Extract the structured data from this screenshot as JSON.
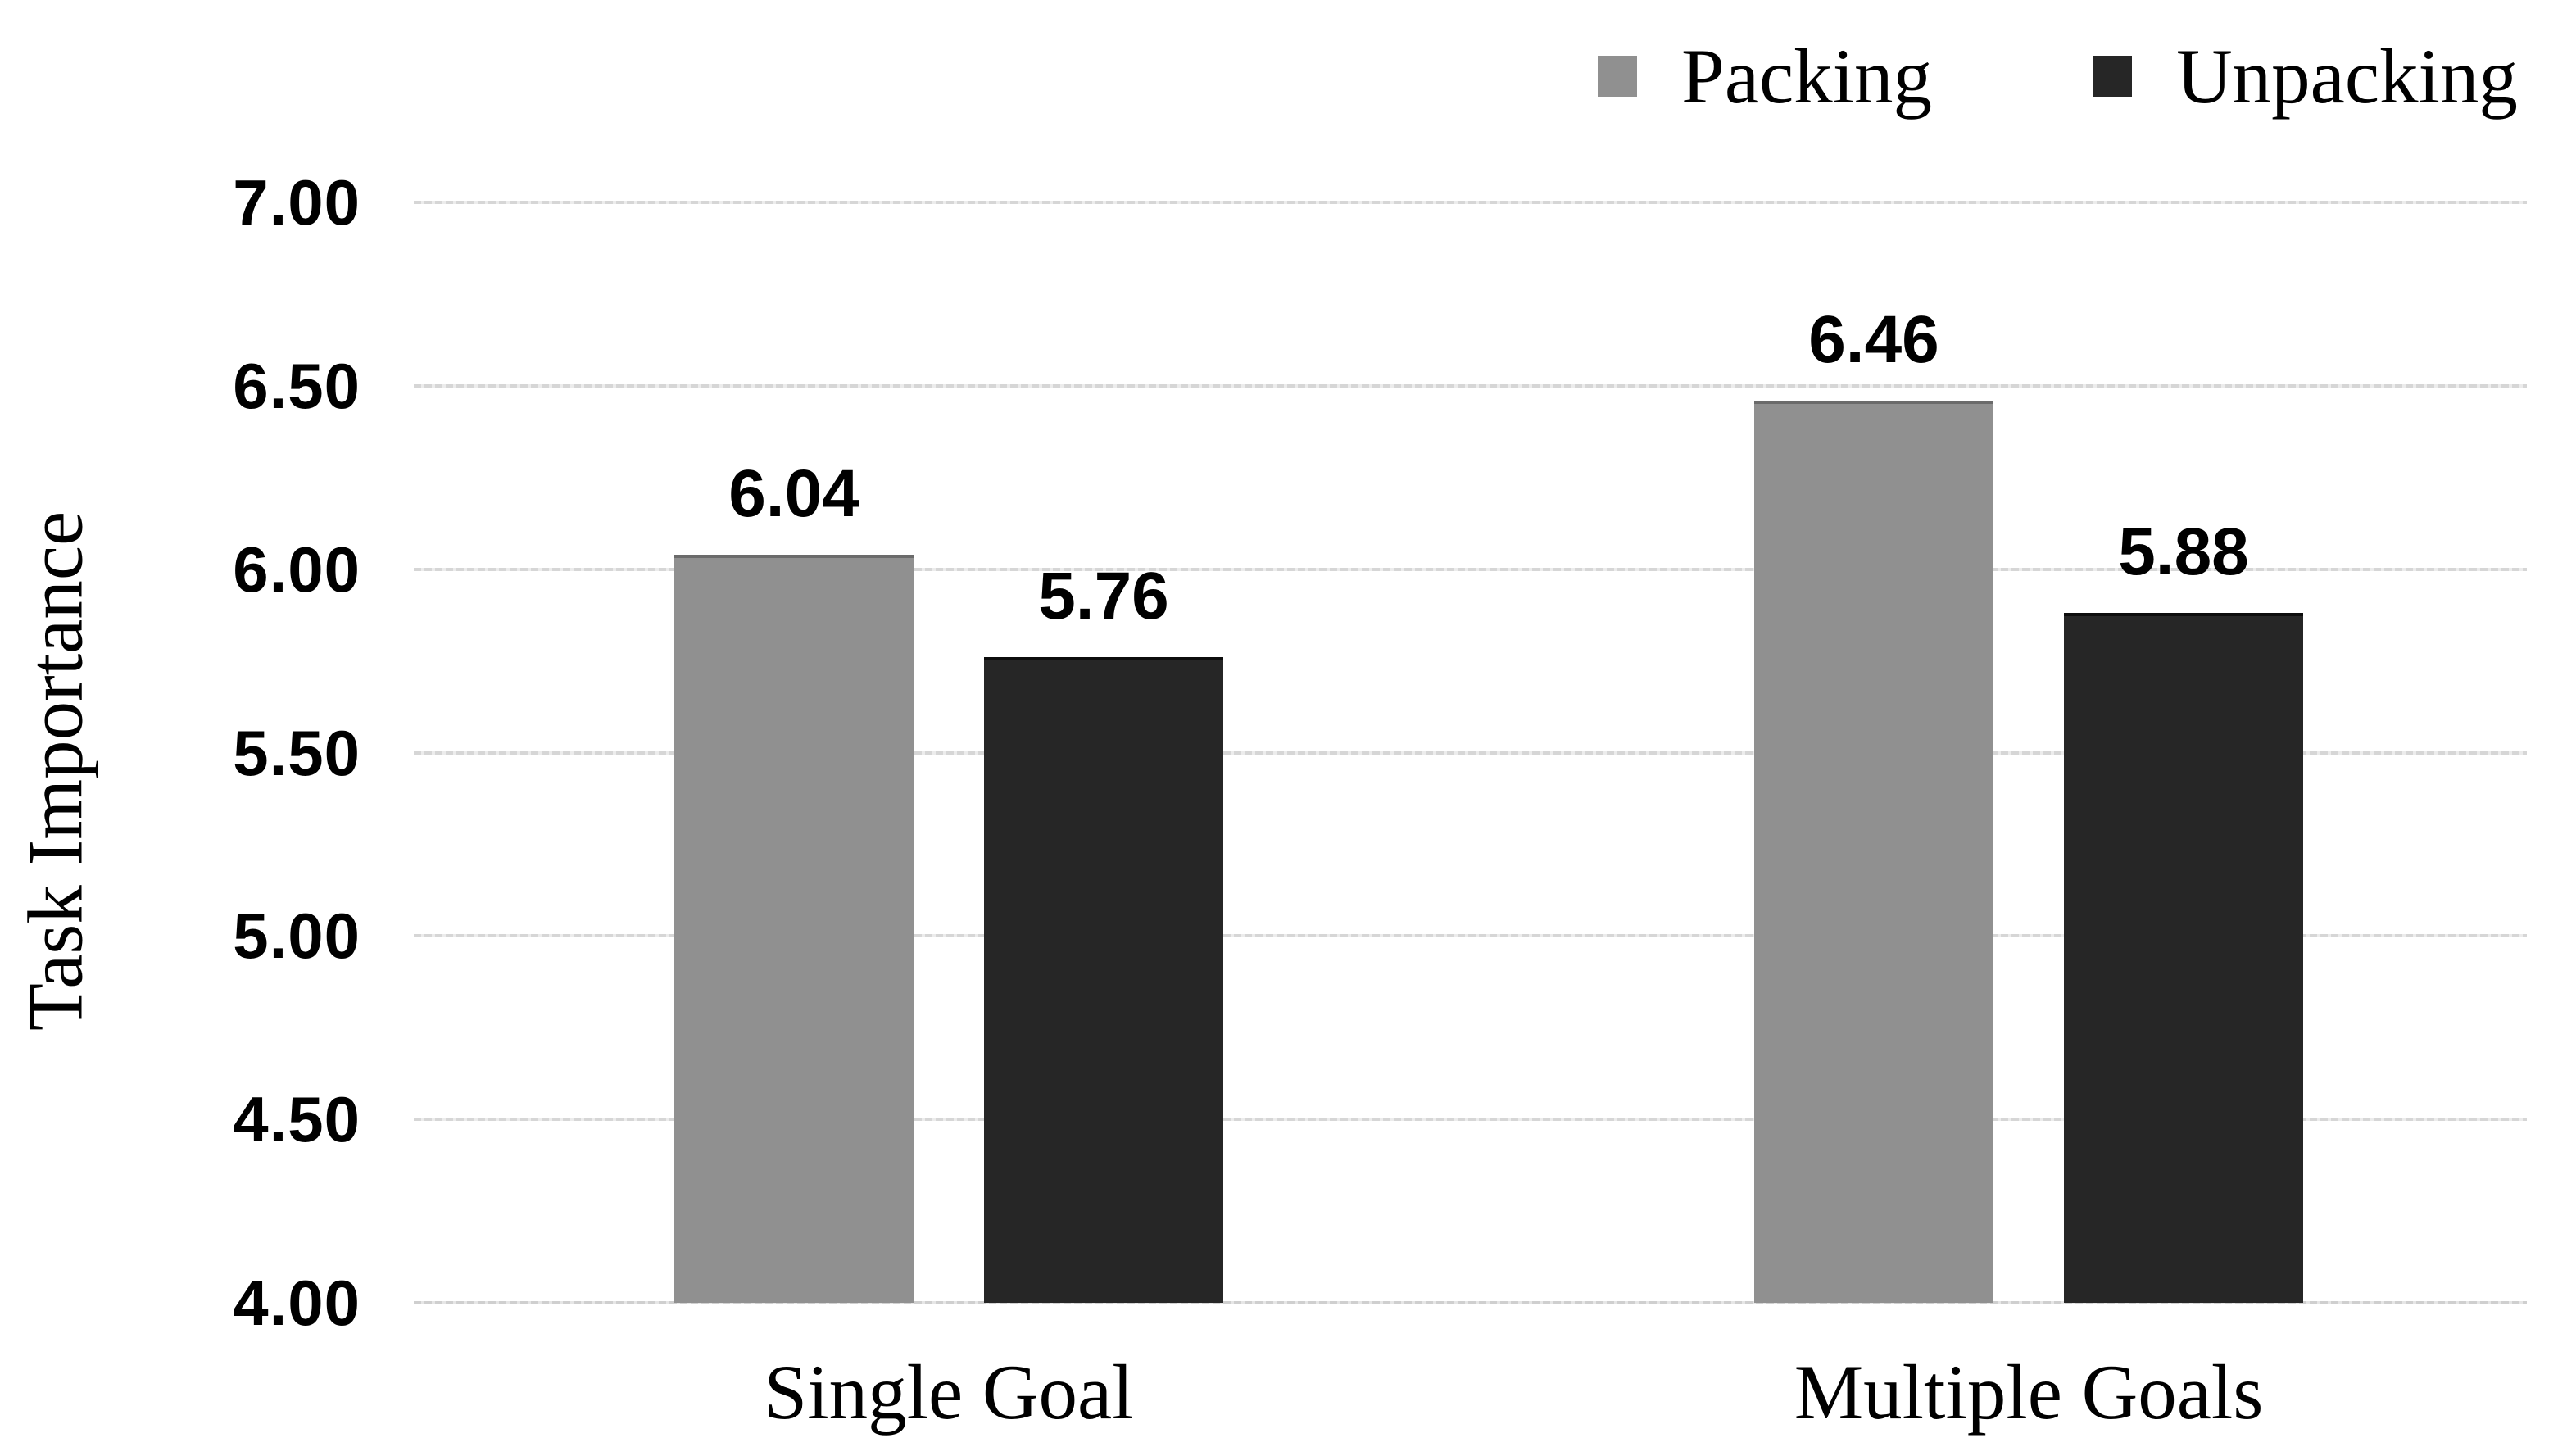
{
  "chart_data": {
    "type": "bar",
    "title": "",
    "ylabel": "Task Importance",
    "xlabel": "",
    "categories": [
      "Single Goal",
      "Multiple Goals"
    ],
    "series": [
      {
        "name": "Packing",
        "color": "#909090",
        "edge_color": "#6b6b6b",
        "values": [
          6.04,
          6.46
        ]
      },
      {
        "name": "Unpacking",
        "color": "#262626",
        "edge_color": "#0d0d0d",
        "values": [
          5.76,
          5.88
        ]
      }
    ],
    "value_labels": {
      "Packing": [
        "6.04",
        "6.46"
      ],
      "Unpacking": [
        "5.76",
        "5.88"
      ]
    },
    "ylim": [
      4.0,
      7.0
    ],
    "ytick_step": 0.5,
    "ytick_labels": [
      "7.00",
      "6.50",
      "6.00",
      "5.50",
      "5.00",
      "4.50",
      "4.00"
    ],
    "grid": true,
    "gridline_color": "#d6d6d6",
    "legend_position": "top-right",
    "text_color": "#000000",
    "background_color": "#ffffff"
  }
}
